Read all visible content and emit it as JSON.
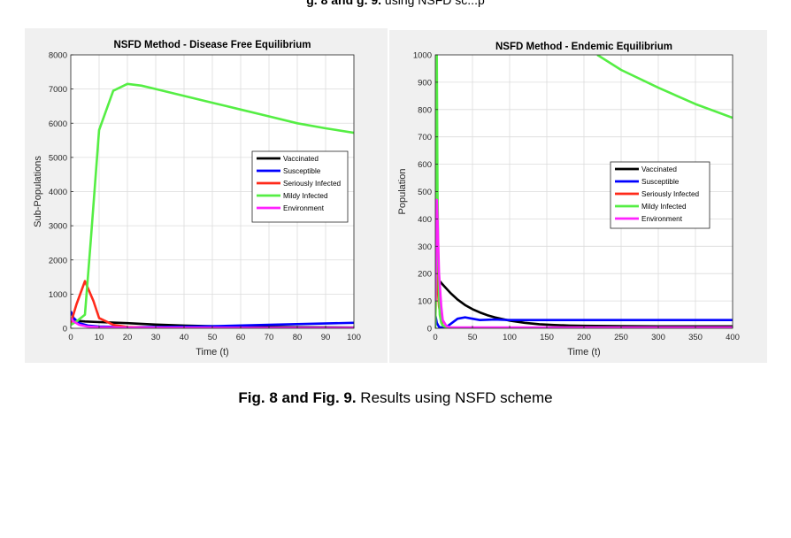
{
  "header_partial": {
    "bold": "g. 8 and g. 9.",
    "rest": "   using NSFD sc...p"
  },
  "caption": {
    "bold": "Fig. 8 and Fig. 9.",
    "rest": " Results using NSFD scheme"
  },
  "colors": {
    "Vaccinated": "#000000",
    "Susceptible": "#0000ff",
    "Seriously Infected": "#ff2a1a",
    "Mildy Infected": "#55ee44",
    "Environment": "#ff22ff"
  },
  "chart_data": [
    {
      "type": "line",
      "title": "NSFD Method - Disease Free Equilibrium",
      "xlabel": "Time (t)",
      "ylabel": "Sub-Populations",
      "xlim": [
        0,
        100
      ],
      "ylim": [
        0,
        8000
      ],
      "xticks": [
        0,
        10,
        20,
        30,
        40,
        50,
        60,
        70,
        80,
        90,
        100
      ],
      "yticks": [
        0,
        1000,
        2000,
        3000,
        4000,
        5000,
        6000,
        7000,
        8000
      ],
      "grid": true,
      "legend_position": "right-middle",
      "series": [
        {
          "name": "Vaccinated",
          "x": [
            0,
            2,
            5,
            10,
            20,
            30,
            40,
            50,
            60,
            80,
            100
          ],
          "y": [
            250,
            220,
            200,
            180,
            150,
            110,
            80,
            60,
            50,
            30,
            20
          ]
        },
        {
          "name": "Susceptible",
          "x": [
            0,
            1,
            3,
            6,
            10,
            20,
            30,
            50,
            70,
            100
          ],
          "y": [
            500,
            300,
            150,
            80,
            50,
            30,
            40,
            60,
            100,
            160
          ]
        },
        {
          "name": "Seriously Infected",
          "x": [
            0,
            2,
            5,
            8,
            10,
            15,
            20,
            30,
            50,
            100
          ],
          "y": [
            150,
            700,
            1380,
            800,
            300,
            100,
            40,
            10,
            2,
            0
          ]
        },
        {
          "name": "Mildy Infected",
          "x": [
            0,
            2,
            5,
            7,
            10,
            15,
            20,
            25,
            30,
            40,
            50,
            60,
            70,
            80,
            90,
            100
          ],
          "y": [
            100,
            200,
            400,
            2500,
            5800,
            6950,
            7150,
            7100,
            7000,
            6800,
            6600,
            6400,
            6200,
            6000,
            5850,
            5720
          ]
        },
        {
          "name": "Environment",
          "x": [
            0,
            1,
            3,
            6,
            10,
            20,
            100
          ],
          "y": [
            300,
            200,
            100,
            50,
            30,
            20,
            10
          ]
        }
      ]
    },
    {
      "type": "line",
      "title": "NSFD Method - Endemic Equilibrium",
      "xlabel": "Time (t)",
      "ylabel": "Population",
      "xlim": [
        0,
        400
      ],
      "ylim": [
        0,
        1000
      ],
      "xticks": [
        0,
        50,
        100,
        150,
        200,
        250,
        300,
        350,
        400
      ],
      "yticks": [
        0,
        100,
        200,
        300,
        400,
        500,
        600,
        700,
        800,
        900,
        1000
      ],
      "grid": true,
      "legend_position": "right-middle",
      "series": [
        {
          "name": "Vaccinated",
          "x": [
            0,
            2,
            5,
            10,
            20,
            30,
            40,
            50,
            60,
            70,
            80,
            90,
            100,
            120,
            140,
            160,
            180,
            200,
            250,
            300,
            400
          ],
          "y": [
            640,
            200,
            175,
            160,
            130,
            105,
            85,
            70,
            58,
            48,
            40,
            34,
            28,
            20,
            15,
            12,
            10,
            9,
            8,
            7,
            7
          ]
        },
        {
          "name": "Susceptible",
          "x": [
            0,
            2,
            5,
            10,
            15,
            20,
            30,
            40,
            50,
            60,
            80,
            100,
            150,
            200,
            400
          ],
          "y": [
            50,
            20,
            5,
            2,
            5,
            15,
            35,
            40,
            35,
            30,
            32,
            30,
            30,
            30,
            30
          ]
        },
        {
          "name": "Seriously Infected",
          "x": [
            0,
            1,
            2,
            3,
            5,
            8,
            10,
            15,
            20,
            400
          ],
          "y": [
            10,
            160,
            330,
            160,
            80,
            30,
            10,
            3,
            1,
            0
          ]
        },
        {
          "name": "Mildy Infected",
          "x": [
            0,
            1,
            2,
            3,
            4,
            5,
            6,
            8,
            10,
            15,
            20,
            30,
            50,
            400
          ],
          "y": [
            0,
            210,
            1000,
            500,
            250,
            120,
            50,
            20,
            10,
            5,
            3,
            2,
            2,
            2
          ]
        },
        {
          "name": "Mildy Infected",
          "x": [
            218,
            250,
            300,
            350,
            400
          ],
          "y": [
            1000,
            945,
            880,
            820,
            770
          ]
        },
        {
          "name": "Environment",
          "x": [
            0,
            1,
            2,
            3,
            5,
            8,
            10,
            15,
            20,
            400
          ],
          "y": [
            100,
            260,
            470,
            400,
            200,
            80,
            30,
            8,
            3,
            3
          ]
        }
      ]
    }
  ],
  "legend_entries": [
    "Vaccinated",
    "Susceptible",
    "Seriously Infected",
    "Mildy Infected",
    "Environment"
  ]
}
